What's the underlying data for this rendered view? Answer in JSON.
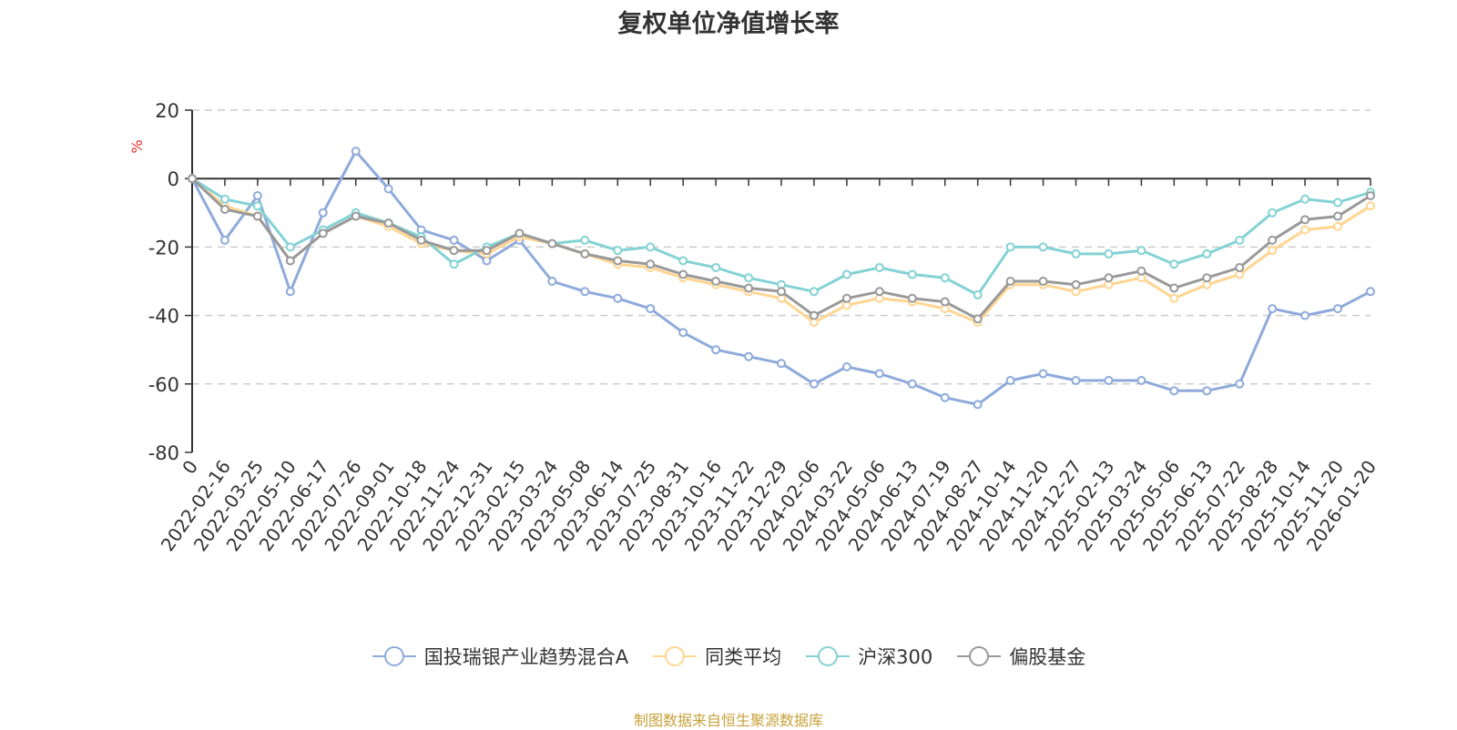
{
  "chart_data": {
    "type": "line",
    "title": "复权单位净值增长率",
    "xlabel": "",
    "ylabel": "%",
    "ylim": [
      -80,
      20
    ],
    "yticks": [
      20,
      0,
      -20,
      -40,
      -60,
      -80
    ],
    "grid": true,
    "legend_position": "bottom",
    "categories": [
      "0",
      "2022-02-16",
      "2022-03-25",
      "2022-05-10",
      "2022-06-17",
      "2022-07-26",
      "2022-09-01",
      "2022-10-18",
      "2022-11-24",
      "2022-12-31",
      "2023-02-15",
      "2023-03-24",
      "2023-05-08",
      "2023-06-14",
      "2023-07-25",
      "2023-08-31",
      "2023-10-16",
      "2023-11-22",
      "2023-12-29",
      "2024-02-06",
      "2024-03-22",
      "2024-05-06",
      "2024-06-13",
      "2024-07-19",
      "2024-08-27",
      "2024-10-14",
      "2024-11-20",
      "2024-12-27",
      "2025-02-13",
      "2025-03-24",
      "2025-05-06",
      "2025-06-13",
      "2025-07-22",
      "2025-08-28",
      "2025-10-14",
      "2025-11-20",
      "2026-01-20"
    ],
    "series": [
      {
        "name": "国投瑞银产业趋势混合A",
        "color": "#8eaadb",
        "values": [
          0,
          -18,
          -5,
          -33,
          -10,
          8,
          -3,
          -15,
          -18,
          -24,
          -18,
          -30,
          -33,
          -35,
          -38,
          -45,
          -50,
          -52,
          -54,
          -60,
          -55,
          -57,
          -60,
          -64,
          -66,
          -59,
          -57,
          -59,
          -59,
          -59,
          -62,
          -62,
          -60,
          -38,
          -40,
          -38,
          -33
        ]
      },
      {
        "name": "同类平均",
        "color": "#ffd591",
        "values": [
          0,
          -8,
          -11,
          -24,
          -16,
          -11,
          -14,
          -19,
          -21,
          -22,
          -17,
          -19,
          -22,
          -25,
          -26,
          -29,
          -31,
          -33,
          -35,
          -42,
          -37,
          -35,
          -36,
          -38,
          -42,
          -31,
          -31,
          -33,
          -31,
          -29,
          -35,
          -31,
          -28,
          -21,
          -15,
          -14,
          -8
        ]
      },
      {
        "name": "沪深300",
        "color": "#84d2d4",
        "values": [
          0,
          -6,
          -8,
          -20,
          -15,
          -10,
          -13,
          -17,
          -25,
          -20,
          -16,
          -19,
          -18,
          -21,
          -20,
          -24,
          -26,
          -29,
          -31,
          -33,
          -28,
          -26,
          -28,
          -29,
          -34,
          -20,
          -20,
          -22,
          -22,
          -21,
          -25,
          -22,
          -18,
          -10,
          -6,
          -7,
          -4
        ]
      },
      {
        "name": "偏股基金",
        "color": "#999999",
        "values": [
          0,
          -9,
          -11,
          -24,
          -16,
          -11,
          -13,
          -18,
          -21,
          -21,
          -16,
          -19,
          -22,
          -24,
          -25,
          -28,
          -30,
          -32,
          -33,
          -40,
          -35,
          -33,
          -35,
          -36,
          -41,
          -30,
          -30,
          -31,
          -29,
          -27,
          -32,
          -29,
          -26,
          -18,
          -12,
          -11,
          -5
        ]
      }
    ]
  },
  "source": {
    "text": "制图数据来自恒生聚源数据库",
    "color": "#c8a13a"
  }
}
